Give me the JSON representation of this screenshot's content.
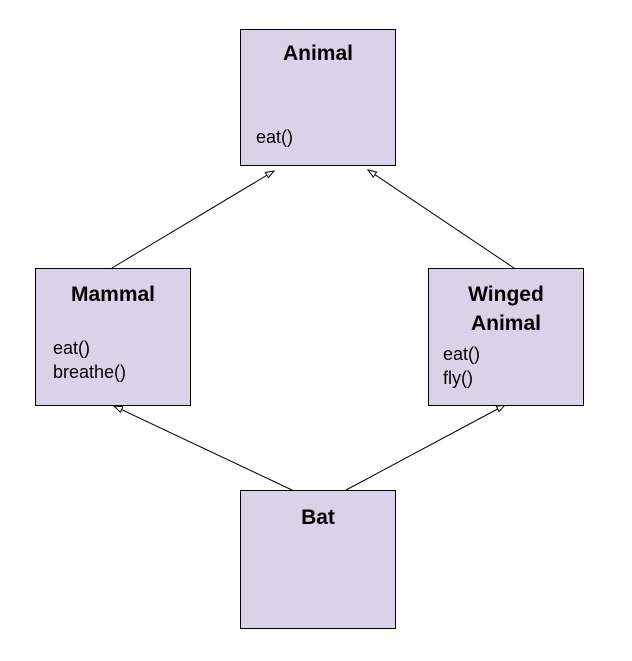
{
  "colors": {
    "box_fill": "#d9d2e9",
    "border": "#000000",
    "text": "#000000",
    "background": "#ffffff"
  },
  "classes": {
    "animal": {
      "name": "Animal",
      "methods": [
        "eat()"
      ]
    },
    "mammal": {
      "name": "Mammal",
      "methods": [
        "eat()",
        "breathe()"
      ]
    },
    "winged": {
      "name_line1": "Winged",
      "name_line2": "Animal",
      "methods": [
        "eat()",
        "fly()"
      ]
    },
    "bat": {
      "name": "Bat",
      "methods": []
    }
  },
  "relations": [
    {
      "from": "Mammal",
      "to": "Animal",
      "type": "inherits"
    },
    {
      "from": "Winged Animal",
      "to": "Animal",
      "type": "inherits"
    },
    {
      "from": "Bat",
      "to": "Mammal",
      "type": "inherits"
    },
    {
      "from": "Bat",
      "to": "Winged Animal",
      "type": "inherits"
    }
  ]
}
